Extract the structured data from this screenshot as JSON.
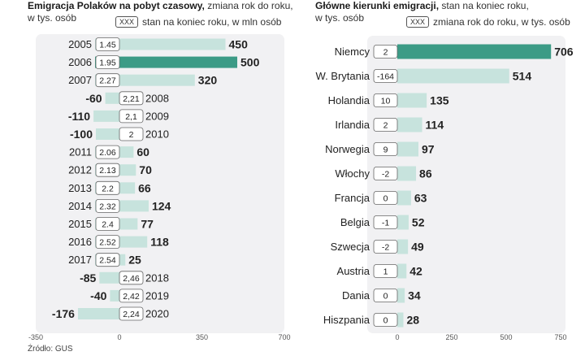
{
  "chart_data": [
    {
      "type": "bar",
      "title_bold": "Emigracja Polaków na pobyt czasowy,",
      "title_rest": "zmiana rok do roku,",
      "title_line2": "w tys. osób",
      "legend_box": "XXX",
      "legend_text": "stan na koniec roku, w mln osób",
      "categories": [
        "2005",
        "2006",
        "2007",
        "2008",
        "2009",
        "2010",
        "2011",
        "2012",
        "2013",
        "2014",
        "2015",
        "2016",
        "2017",
        "2018",
        "2019",
        "2020"
      ],
      "values": [
        450,
        500,
        320,
        -60,
        -110,
        -100,
        60,
        70,
        66,
        124,
        77,
        118,
        25,
        -85,
        -40,
        -176
      ],
      "stock_labels": [
        "1.45",
        "1.95",
        "2.27",
        "2,21",
        "2,1",
        "2",
        "2.06",
        "2.13",
        "2.2",
        "2.32",
        "2.4",
        "2.52",
        "2.54",
        "2,46",
        "2,42",
        "2,24"
      ],
      "value_labels": [
        "450",
        "500",
        "320",
        "-60",
        "-110",
        "-100",
        "60",
        "70",
        "66",
        "124",
        "77",
        "118",
        "25",
        "-85",
        "-40",
        "-176"
      ],
      "highlight_index": 1,
      "xlim": [
        -350,
        700
      ],
      "x_ticks": [
        -350,
        0,
        350,
        700
      ],
      "x_tick_labels": [
        "-350",
        "0",
        "350",
        "700"
      ],
      "bar_color": "#c7e3dd",
      "highlight_color": "#3c9b86"
    },
    {
      "type": "bar",
      "title_bold": "Główne kierunki emigracji,",
      "title_rest": "stan na koniec roku,",
      "title_line2": "w tys. osób",
      "legend_box": "XXX",
      "legend_text": "zmiana rok do roku, w tys. osób",
      "categories": [
        "Niemcy",
        "W. Brytania",
        "Holandia",
        "Irlandia",
        "Norwegia",
        "Włochy",
        "Francja",
        "Belgia",
        "Szwecja",
        "Austria",
        "Dania",
        "Hiszpania"
      ],
      "values": [
        706,
        514,
        135,
        114,
        97,
        86,
        63,
        52,
        49,
        42,
        34,
        28
      ],
      "change_labels": [
        "2",
        "-164",
        "10",
        "2",
        "9",
        "-2",
        "0",
        "-1",
        "-2",
        "1",
        "0",
        "0"
      ],
      "value_labels": [
        "706",
        "514",
        "135",
        "114",
        "97",
        "86",
        "63",
        "52",
        "49",
        "42",
        "34",
        "28"
      ],
      "highlight_index": 0,
      "xlim": [
        0,
        750
      ],
      "x_ticks": [
        0,
        250,
        500,
        750
      ],
      "x_tick_labels": [
        "0",
        "250",
        "500",
        "750"
      ],
      "bar_color": "#c7e3dd",
      "highlight_color": "#3c9b86"
    }
  ],
  "source": "Źródło: GUS"
}
